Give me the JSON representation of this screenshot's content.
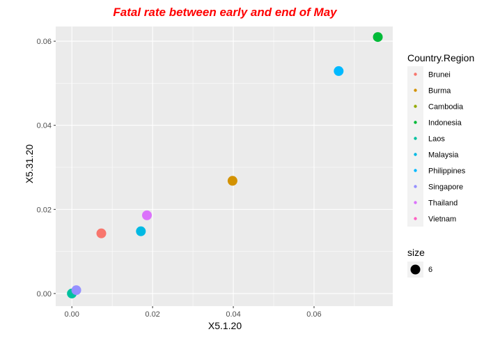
{
  "chart_data": {
    "type": "scatter",
    "title": "Fatal rate between early and end of May",
    "title_color": "#ff0000",
    "xlabel": "X5.1.20",
    "ylabel": "X5.31.20",
    "xlim": [
      -0.004,
      0.0795
    ],
    "ylim": [
      -0.003,
      0.0635
    ],
    "x_ticks": [
      0.0,
      0.02,
      0.04,
      0.06
    ],
    "y_ticks": [
      0.0,
      0.02,
      0.04,
      0.06
    ],
    "x_tick_labels": [
      "0.00",
      "0.02",
      "0.04",
      "0.06"
    ],
    "y_tick_labels": [
      "0.00",
      "0.02",
      "0.04",
      "0.06"
    ],
    "grid": true,
    "panel_background": "#ebebeb",
    "grid_color": "#ffffff",
    "legend_position": "right",
    "color_legend_title": "Country.Region",
    "size_legend_title": "size",
    "size_legend_label": "6",
    "series": [
      {
        "name": "Brunei",
        "color": "#F8766D",
        "x": 0.0073,
        "y": 0.0143
      },
      {
        "name": "Burma",
        "color": "#D39200",
        "x": 0.0398,
        "y": 0.0268
      },
      {
        "name": "Cambodia",
        "color": "#93AA00",
        "x": null,
        "y": null
      },
      {
        "name": "Indonesia",
        "color": "#00BA38",
        "x": 0.0758,
        "y": 0.061
      },
      {
        "name": "Laos",
        "color": "#00C19F",
        "x": 0.0,
        "y": 0.0
      },
      {
        "name": "Malaysia",
        "color": "#00B9E3",
        "x": 0.0171,
        "y": 0.0148
      },
      {
        "name": "Philippines",
        "color": "#00B9FF",
        "x": 0.0661,
        "y": 0.0529
      },
      {
        "name": "Singapore",
        "color": "#9590FF",
        "x": 0.0011,
        "y": 0.0008
      },
      {
        "name": "Thailand",
        "color": "#DB72FB",
        "x": 0.0186,
        "y": 0.0186
      },
      {
        "name": "Vietnam",
        "color": "#FF61C3",
        "x": null,
        "y": null
      }
    ]
  }
}
